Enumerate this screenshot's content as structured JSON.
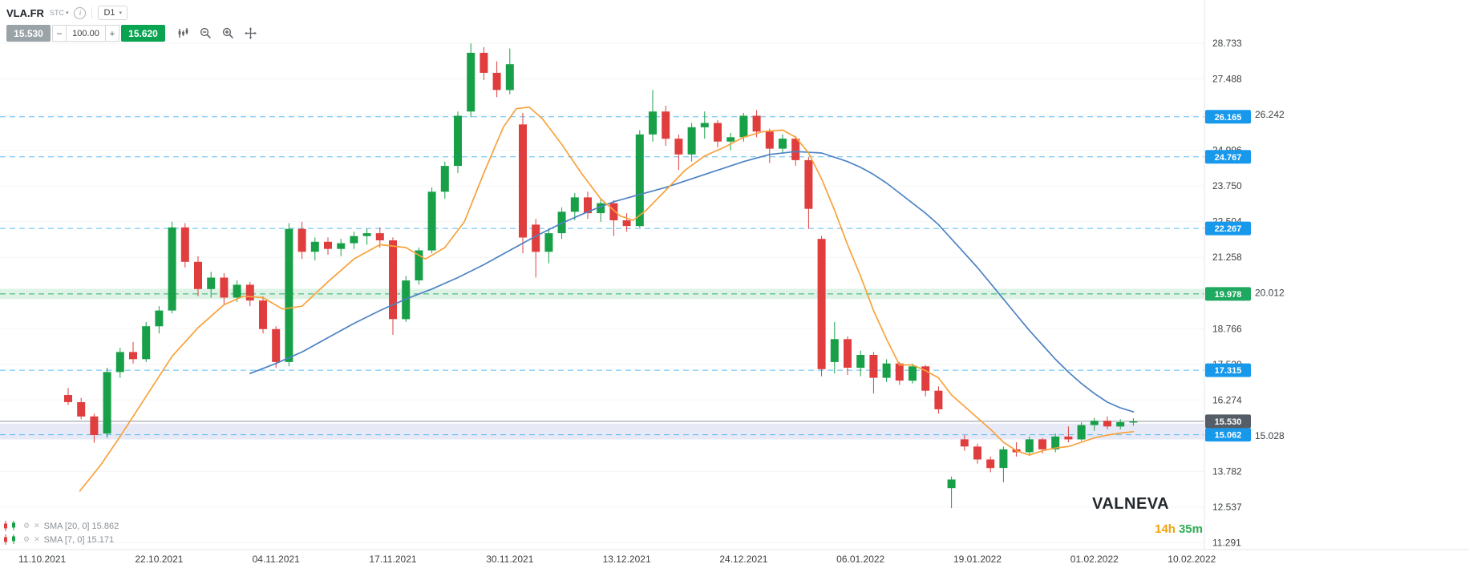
{
  "header": {
    "symbol": "VLA.FR",
    "instrument_type": "STC",
    "timeframe": "D1",
    "sell_price": "15.530",
    "buy_price": "15.620",
    "quantity": "100.00",
    "minus_label": "−",
    "plus_label": "+"
  },
  "legend": {
    "rows": [
      {
        "label": "SMA [20, 0] 15.862"
      },
      {
        "label": "SMA [7, 0] 15.171"
      }
    ]
  },
  "chart_data": {
    "type": "candlestick",
    "title": "VLA.FR D1",
    "watermark": "VALNEVA",
    "time_remaining": {
      "hours": "14h",
      "minutes": "35m"
    },
    "current_price": {
      "value": 15.53,
      "label": "15.530"
    },
    "y_axis_labels": [
      "28.733",
      "27.488",
      "26.242",
      "24.996",
      "23.750",
      "22.504",
      "21.258",
      "20.012",
      "18.766",
      "17.520",
      "16.274",
      "15.028",
      "13.782",
      "12.537",
      "11.291"
    ],
    "x_axis_labels": [
      {
        "label": "11.10.2021",
        "bar": -2
      },
      {
        "label": "22.10.2021",
        "bar": 7
      },
      {
        "label": "04.11.2021",
        "bar": 16
      },
      {
        "label": "17.11.2021",
        "bar": 25
      },
      {
        "label": "30.11.2021",
        "bar": 34
      },
      {
        "label": "13.12.2021",
        "bar": 43
      },
      {
        "label": "24.12.2021",
        "bar": 52
      },
      {
        "label": "06.01.2022",
        "bar": 61
      },
      {
        "label": "19.01.2022",
        "bar": 70
      },
      {
        "label": "01.02.2022",
        "bar": 79
      },
      {
        "label": "10.02.2022",
        "bar": 86.5
      }
    ],
    "levels": [
      {
        "label": "26.165",
        "value": 26.165,
        "color": "blue"
      },
      {
        "label": "24.767",
        "value": 24.767,
        "color": "blue"
      },
      {
        "label": "22.267",
        "value": 22.267,
        "color": "blue"
      },
      {
        "label": "19.978",
        "value": 19.978,
        "color": "green",
        "band": [
          19.8,
          20.16
        ],
        "band_color": "green"
      },
      {
        "label": "17.315",
        "value": 17.315,
        "color": "blue"
      },
      {
        "label": "15.062",
        "value": 15.062,
        "color": "blue",
        "band": [
          14.9,
          15.45
        ],
        "band_color": "lavender"
      }
    ],
    "candles": [
      [
        16.45,
        16.7,
        16.1,
        16.2
      ],
      [
        16.2,
        16.35,
        15.6,
        15.7
      ],
      [
        15.7,
        15.8,
        14.78,
        15.05
      ],
      [
        15.1,
        17.4,
        14.95,
        17.25
      ],
      [
        17.25,
        18.1,
        17.05,
        17.95
      ],
      [
        17.95,
        18.3,
        17.55,
        17.7
      ],
      [
        17.7,
        19.0,
        17.6,
        18.85
      ],
      [
        18.85,
        19.55,
        18.6,
        19.4
      ],
      [
        19.4,
        22.5,
        19.3,
        22.3
      ],
      [
        22.3,
        22.45,
        20.9,
        21.1
      ],
      [
        21.1,
        21.3,
        19.9,
        20.15
      ],
      [
        20.15,
        20.75,
        19.85,
        20.55
      ],
      [
        20.55,
        20.7,
        19.6,
        19.85
      ],
      [
        19.85,
        20.45,
        19.7,
        20.3
      ],
      [
        20.3,
        20.4,
        19.55,
        19.75
      ],
      [
        19.75,
        19.9,
        18.6,
        18.75
      ],
      [
        18.75,
        18.85,
        17.4,
        17.6
      ],
      [
        17.6,
        22.45,
        17.45,
        22.25
      ],
      [
        22.25,
        22.5,
        21.2,
        21.45
      ],
      [
        21.45,
        21.95,
        21.15,
        21.8
      ],
      [
        21.8,
        21.95,
        21.35,
        21.55
      ],
      [
        21.55,
        21.9,
        21.3,
        21.75
      ],
      [
        21.75,
        22.15,
        21.55,
        22.0
      ],
      [
        22.0,
        22.25,
        21.7,
        22.1
      ],
      [
        22.1,
        22.3,
        21.6,
        21.85
      ],
      [
        21.85,
        21.95,
        18.55,
        19.1
      ],
      [
        19.1,
        20.6,
        19.0,
        20.45
      ],
      [
        20.45,
        21.6,
        20.3,
        21.5
      ],
      [
        21.5,
        23.7,
        21.4,
        23.55
      ],
      [
        23.55,
        24.6,
        23.3,
        24.45
      ],
      [
        24.45,
        26.35,
        24.2,
        26.2
      ],
      [
        26.35,
        28.73,
        26.15,
        28.4
      ],
      [
        28.4,
        28.6,
        27.45,
        27.7
      ],
      [
        27.7,
        28.1,
        26.85,
        27.1
      ],
      [
        27.1,
        28.55,
        26.95,
        28.0
      ],
      [
        25.9,
        26.3,
        21.4,
        21.95
      ],
      [
        22.4,
        22.6,
        20.55,
        21.45
      ],
      [
        21.45,
        22.25,
        21.05,
        22.1
      ],
      [
        22.1,
        23.0,
        21.9,
        22.85
      ],
      [
        22.85,
        23.5,
        22.55,
        23.35
      ],
      [
        23.35,
        23.55,
        22.6,
        22.8
      ],
      [
        22.8,
        23.3,
        22.5,
        23.15
      ],
      [
        23.15,
        23.25,
        22.0,
        22.55
      ],
      [
        22.55,
        22.8,
        22.15,
        22.35
      ],
      [
        22.35,
        25.7,
        22.3,
        25.55
      ],
      [
        25.55,
        27.1,
        25.3,
        26.35
      ],
      [
        26.35,
        26.55,
        25.15,
        25.4
      ],
      [
        25.4,
        25.55,
        24.3,
        24.85
      ],
      [
        24.85,
        25.95,
        24.6,
        25.8
      ],
      [
        25.8,
        26.35,
        25.4,
        25.95
      ],
      [
        25.95,
        26.05,
        25.1,
        25.3
      ],
      [
        25.3,
        25.6,
        25.0,
        25.45
      ],
      [
        25.45,
        26.3,
        25.3,
        26.2
      ],
      [
        26.2,
        26.4,
        25.45,
        25.65
      ],
      [
        25.65,
        25.75,
        24.55,
        25.05
      ],
      [
        25.05,
        25.55,
        24.9,
        25.4
      ],
      [
        25.4,
        25.5,
        24.45,
        24.65
      ],
      [
        24.65,
        24.75,
        22.25,
        22.95
      ],
      [
        21.9,
        22.0,
        17.1,
        17.35
      ],
      [
        17.6,
        19.0,
        17.2,
        18.4
      ],
      [
        18.4,
        18.5,
        17.15,
        17.4
      ],
      [
        17.4,
        18.0,
        17.1,
        17.85
      ],
      [
        17.85,
        17.95,
        16.5,
        17.05
      ],
      [
        17.05,
        17.7,
        16.9,
        17.55
      ],
      [
        17.55,
        17.6,
        16.8,
        16.95
      ],
      [
        16.95,
        17.55,
        16.85,
        17.45
      ],
      [
        17.45,
        17.5,
        16.4,
        16.6
      ],
      [
        16.6,
        16.75,
        15.8,
        15.95
      ],
      [
        13.2,
        13.6,
        12.5,
        13.5
      ],
      [
        14.9,
        15.05,
        14.5,
        14.65
      ],
      [
        14.65,
        14.75,
        14.05,
        14.2
      ],
      [
        14.2,
        14.3,
        13.75,
        13.9
      ],
      [
        13.9,
        14.65,
        13.4,
        14.55
      ],
      [
        14.55,
        14.8,
        14.3,
        14.45
      ],
      [
        14.45,
        15.0,
        14.35,
        14.9
      ],
      [
        14.9,
        14.95,
        14.4,
        14.55
      ],
      [
        14.55,
        15.1,
        14.45,
        15.0
      ],
      [
        15.0,
        15.35,
        14.8,
        14.9
      ],
      [
        14.9,
        15.5,
        14.85,
        15.4
      ],
      [
        15.4,
        15.65,
        15.2,
        15.55
      ],
      [
        15.55,
        15.7,
        15.25,
        15.35
      ],
      [
        15.35,
        15.6,
        15.25,
        15.5
      ],
      [
        15.5,
        15.64,
        15.38,
        15.53
      ]
    ],
    "sma": [
      {
        "name": "SMA [20, 0]",
        "value_label": "15.862",
        "color_key": "blue",
        "points": [
          [
            14,
            17.2
          ],
          [
            16,
            17.55
          ],
          [
            18,
            17.95
          ],
          [
            20,
            18.45
          ],
          [
            22,
            18.95
          ],
          [
            24,
            19.4
          ],
          [
            26,
            19.8
          ],
          [
            28,
            20.15
          ],
          [
            30,
            20.55
          ],
          [
            32,
            21.0
          ],
          [
            34,
            21.5
          ],
          [
            36,
            22.0
          ],
          [
            38,
            22.45
          ],
          [
            40,
            22.85
          ],
          [
            42,
            23.2
          ],
          [
            44,
            23.45
          ],
          [
            46,
            23.7
          ],
          [
            48,
            24.0
          ],
          [
            50,
            24.3
          ],
          [
            52,
            24.6
          ],
          [
            54,
            24.85
          ],
          [
            56,
            24.95
          ],
          [
            58,
            24.9
          ],
          [
            60,
            24.6
          ],
          [
            61,
            24.4
          ],
          [
            62,
            24.15
          ],
          [
            63,
            23.85
          ],
          [
            64,
            23.5
          ],
          [
            65,
            23.15
          ],
          [
            66,
            22.8
          ],
          [
            67,
            22.4
          ],
          [
            68,
            21.9
          ],
          [
            69,
            21.4
          ],
          [
            70,
            20.9
          ],
          [
            71,
            20.35
          ],
          [
            72,
            19.8
          ],
          [
            73,
            19.25
          ],
          [
            74,
            18.7
          ],
          [
            75,
            18.2
          ],
          [
            76,
            17.7
          ],
          [
            77,
            17.25
          ],
          [
            78,
            16.85
          ],
          [
            79,
            16.5
          ],
          [
            80,
            16.2
          ],
          [
            81,
            16.0
          ],
          [
            82,
            15.86
          ]
        ]
      },
      {
        "name": "SMA [7, 0]",
        "value_label": "15.171",
        "color_key": "orange",
        "points": [
          [
            0.9,
            13.1
          ],
          [
            2.5,
            14.0
          ],
          [
            4,
            15.0
          ],
          [
            6,
            16.4
          ],
          [
            8,
            17.8
          ],
          [
            10,
            18.8
          ],
          [
            12,
            19.6
          ],
          [
            13.5,
            19.9
          ],
          [
            15,
            19.85
          ],
          [
            16.5,
            19.45
          ],
          [
            18,
            19.55
          ],
          [
            20,
            20.4
          ],
          [
            22,
            21.2
          ],
          [
            24,
            21.7
          ],
          [
            26,
            21.6
          ],
          [
            27.5,
            21.2
          ],
          [
            29,
            21.6
          ],
          [
            30.5,
            22.5
          ],
          [
            32,
            24.2
          ],
          [
            33.5,
            25.8
          ],
          [
            34.5,
            26.45
          ],
          [
            35.5,
            26.5
          ],
          [
            36.5,
            26.1
          ],
          [
            38,
            25.2
          ],
          [
            39.5,
            24.2
          ],
          [
            41,
            23.3
          ],
          [
            42.5,
            22.7
          ],
          [
            43.5,
            22.55
          ],
          [
            44.5,
            22.9
          ],
          [
            46,
            23.6
          ],
          [
            47.5,
            24.3
          ],
          [
            49,
            24.8
          ],
          [
            50.5,
            25.1
          ],
          [
            52,
            25.45
          ],
          [
            53.5,
            25.65
          ],
          [
            55,
            25.7
          ],
          [
            56,
            25.45
          ],
          [
            57,
            24.9
          ],
          [
            58,
            24.0
          ],
          [
            59,
            22.9
          ],
          [
            60,
            21.7
          ],
          [
            61,
            20.6
          ],
          [
            62,
            19.4
          ],
          [
            63,
            18.4
          ],
          [
            64,
            17.5
          ],
          [
            65,
            17.5
          ],
          [
            66,
            17.3
          ],
          [
            67,
            17.05
          ],
          [
            68,
            16.45
          ],
          [
            69,
            16.05
          ],
          [
            70,
            15.65
          ],
          [
            71,
            15.25
          ],
          [
            72,
            14.8
          ],
          [
            73,
            14.5
          ],
          [
            74,
            14.35
          ],
          [
            75,
            14.5
          ],
          [
            76,
            14.6
          ],
          [
            77,
            14.65
          ],
          [
            78,
            14.8
          ],
          [
            79,
            14.95
          ],
          [
            80,
            15.05
          ],
          [
            81,
            15.12
          ],
          [
            82,
            15.17
          ]
        ]
      }
    ],
    "colors": {
      "up": "#18a048",
      "down": "#e03e3e",
      "sma20": "#4d82c3",
      "sma7": "#f8a23b",
      "level_line": "#58bdf3",
      "level_green_line": "#2fae6b",
      "tag_blue": "#1798ea",
      "tag_green": "#1fa85f",
      "tag_dark": "#555e67",
      "current_line": "#8b949c",
      "band_green": "#def3e6",
      "band_lavender": "#e7e9f7",
      "grid": "#f5f5f5",
      "axis_text": "#3c4043"
    }
  }
}
